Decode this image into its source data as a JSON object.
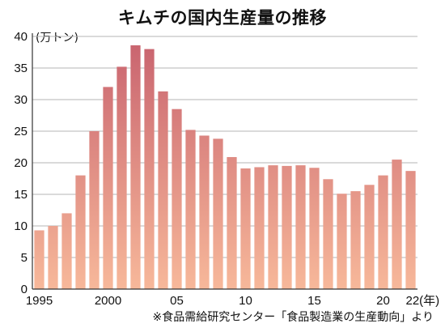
{
  "title": "キムチの国内生産量の推移",
  "source": "※食品需給研究センター「食品製造業の生産動向」より",
  "chart_data": {
    "type": "bar",
    "title": "キムチの国内生産量の推移",
    "ylabel": "(万トン)",
    "xlabel": "(年)",
    "ylim": [
      0,
      40
    ],
    "yticks": [
      "0",
      "5",
      "10",
      "15",
      "20",
      "25",
      "30",
      "35",
      "40"
    ],
    "grid": true,
    "categories": [
      "1995",
      "1996",
      "1997",
      "1998",
      "1999",
      "2000",
      "2001",
      "2002",
      "2003",
      "2004",
      "2005",
      "2006",
      "2007",
      "2008",
      "2009",
      "2010",
      "2011",
      "2012",
      "2013",
      "2014",
      "2015",
      "2016",
      "2017",
      "2018",
      "2019",
      "2020",
      "2021",
      "2022"
    ],
    "xtick_labels": [
      {
        "category": "1995",
        "label": "1995"
      },
      {
        "category": "2000",
        "label": "2000"
      },
      {
        "category": "2005",
        "label": "05"
      },
      {
        "category": "2010",
        "label": "10"
      },
      {
        "category": "2015",
        "label": "15"
      },
      {
        "category": "2020",
        "label": "20"
      },
      {
        "category": "2022",
        "label": "22(年)"
      }
    ],
    "values": [
      9.3,
      10.0,
      12.0,
      18.0,
      25.0,
      32.0,
      35.2,
      38.6,
      38.0,
      31.3,
      28.5,
      25.2,
      24.3,
      23.8,
      20.9,
      19.1,
      19.3,
      19.6,
      19.5,
      19.6,
      19.2,
      17.4,
      15.1,
      15.5,
      16.5,
      18.0,
      20.5,
      18.7
    ],
    "colors": {
      "bar_top": "#c8626e",
      "bar_bottom": "#f7b89a",
      "grid": "#b5b5b5",
      "axis": "#333333"
    }
  }
}
